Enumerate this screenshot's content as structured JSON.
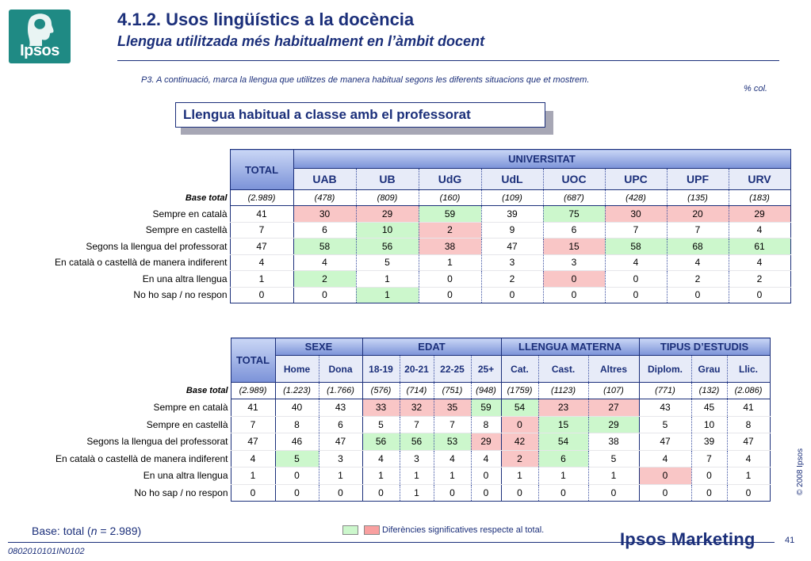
{
  "logo": {
    "text": "Ipsos"
  },
  "header": {
    "title": "4.1.2. Usos lingüístics a la docència",
    "subtitle": "Llengua utilitzada més habitualment en l’àmbit docent"
  },
  "question": "P3. A continuació, marca la llengua que utilitzes de manera habitual segons les diferents situacions que et mostrem.",
  "unit": "% col.",
  "box_title": "Llengua habitual a classe amb el professorat",
  "row_labels": [
    "Base total",
    "Sempre en català",
    "Sempre en castellà",
    "Segons la llengua del professorat",
    "En català o castellà de manera indiferent",
    "En una altra llengua",
    "No ho sap / no respon"
  ],
  "table1": {
    "total_label": "TOTAL",
    "group_label": "UNIVERSITAT",
    "columns": [
      "UAB",
      "UB",
      "UdG",
      "UdL",
      "UOC",
      "UPC",
      "UPF",
      "URV"
    ],
    "bases": [
      "(2.989)",
      "(478)",
      "(809)",
      "(160)",
      "(109)",
      "(687)",
      "(428)",
      "(135)",
      "(183)"
    ],
    "rows": [
      [
        "41",
        "30",
        "29",
        "59",
        "39",
        "75",
        "30",
        "20",
        "29"
      ],
      [
        "7",
        "6",
        "10",
        "2",
        "9",
        "6",
        "7",
        "7",
        "4"
      ],
      [
        "47",
        "58",
        "56",
        "38",
        "47",
        "15",
        "58",
        "68",
        "61"
      ],
      [
        "4",
        "4",
        "5",
        "1",
        "3",
        "3",
        "4",
        "4",
        "4"
      ],
      [
        "1",
        "2",
        "1",
        "0",
        "2",
        "0",
        "0",
        "2",
        "2"
      ],
      [
        "0",
        "0",
        "1",
        "0",
        "0",
        "0",
        "0",
        "0",
        "0"
      ]
    ],
    "highlights": [
      [
        "",
        "r",
        "r",
        "g",
        "",
        "g",
        "r",
        "r",
        "r"
      ],
      [
        "",
        "",
        "g",
        "r",
        "",
        "",
        "",
        "",
        ""
      ],
      [
        "",
        "g",
        "g",
        "r",
        "",
        "r",
        "g",
        "g",
        "g"
      ],
      [
        "",
        "",
        "",
        "",
        "",
        "",
        "",
        "",
        ""
      ],
      [
        "",
        "g",
        "",
        "",
        "",
        "r",
        "",
        "",
        ""
      ],
      [
        "",
        "",
        "g",
        "",
        "",
        "",
        "",
        "",
        ""
      ]
    ]
  },
  "table2": {
    "total_label": "TOTAL",
    "groups": [
      {
        "label": "SEXE",
        "span": 2
      },
      {
        "label": "EDAT",
        "span": 4
      },
      {
        "label": "LLENGUA MATERNA",
        "span": 3
      },
      {
        "label": "TIPUS D’ESTUDIS",
        "span": 3
      }
    ],
    "columns": [
      "Home",
      "Dona",
      "18-19",
      "20-21",
      "22-25",
      "25+",
      "Cat.",
      "Cast.",
      "Altres",
      "Diplom.",
      "Grau",
      "Llic."
    ],
    "bases": [
      "(2.989)",
      "(1.223)",
      "(1.766)",
      "(576)",
      "(714)",
      "(751)",
      "(948)",
      "(1759)",
      "(1123)",
      "(107)",
      "(771)",
      "(132)",
      "(2.086)"
    ],
    "rows": [
      [
        "41",
        "40",
        "43",
        "33",
        "32",
        "35",
        "59",
        "54",
        "23",
        "27",
        "43",
        "45",
        "41"
      ],
      [
        "7",
        "8",
        "6",
        "5",
        "7",
        "7",
        "8",
        "0",
        "15",
        "29",
        "5",
        "10",
        "8"
      ],
      [
        "47",
        "46",
        "47",
        "56",
        "56",
        "53",
        "29",
        "42",
        "54",
        "38",
        "47",
        "39",
        "47"
      ],
      [
        "4",
        "5",
        "3",
        "4",
        "3",
        "4",
        "4",
        "2",
        "6",
        "5",
        "4",
        "7",
        "4"
      ],
      [
        "1",
        "0",
        "1",
        "1",
        "1",
        "1",
        "0",
        "1",
        "1",
        "1",
        "0",
        "0",
        "1"
      ],
      [
        "0",
        "0",
        "0",
        "0",
        "1",
        "0",
        "0",
        "0",
        "0",
        "0",
        "0",
        "0",
        "0"
      ]
    ],
    "highlights": [
      [
        "",
        "",
        "",
        "r",
        "r",
        "r",
        "g",
        "g",
        "r",
        "r",
        "",
        "",
        ""
      ],
      [
        "",
        "",
        "",
        "",
        "",
        "",
        "",
        "r",
        "g",
        "g",
        "",
        "",
        ""
      ],
      [
        "",
        "",
        "",
        "g",
        "g",
        "g",
        "r",
        "r",
        "g",
        "",
        "",
        "",
        ""
      ],
      [
        "",
        "g",
        "",
        "",
        "",
        "",
        "",
        "r",
        "g",
        "",
        "",
        "",
        ""
      ],
      [
        "",
        "",
        "",
        "",
        "",
        "",
        "",
        "",
        "",
        "",
        "r",
        "",
        ""
      ],
      [
        "",
        "",
        "",
        "",
        "",
        "",
        "",
        "",
        "",
        "",
        "",
        "",
        ""
      ]
    ]
  },
  "colors": {
    "significant_higher": "#ccf7cc",
    "significant_lower": "#f9c6c6",
    "accent": "#1b2f7a"
  },
  "copyright": "© 2008 Ipsos",
  "footer": {
    "base_prefix": "Base: total (",
    "base_n": "n",
    "base_suffix": " = 2.989)",
    "legend_text": "Diferències significatives respecte al total.",
    "code": "0802010101IN0102",
    "brand": "Ipsos Marketing",
    "page": "41"
  }
}
